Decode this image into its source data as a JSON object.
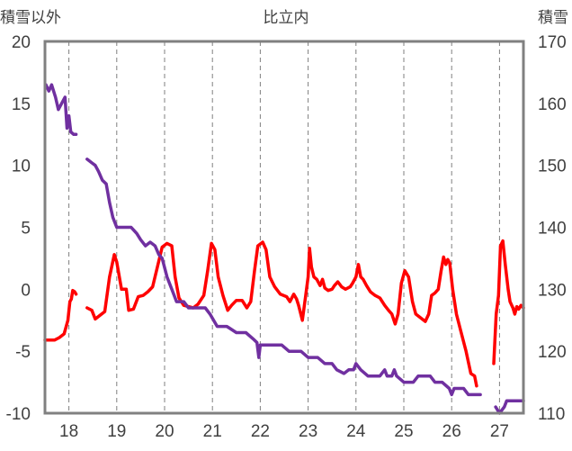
{
  "chart_data": {
    "type": "line",
    "title": "比立内",
    "left_axis_label": "積雪以外",
    "right_axis_label": "積雪",
    "x_ticks": [
      "18",
      "19",
      "20",
      "21",
      "22",
      "23",
      "24",
      "25",
      "26",
      "27"
    ],
    "xlim": [
      17.5,
      27.5
    ],
    "ylim_left": [
      -10,
      20
    ],
    "ylim_right": [
      110,
      170
    ],
    "y_ticks_left": [
      "20",
      "15",
      "10",
      "5",
      "0",
      "-5",
      "-10"
    ],
    "y_ticks_right": [
      "170",
      "160",
      "150",
      "140",
      "130",
      "120",
      "110"
    ],
    "grid": "vertical dashed at each day",
    "series": [
      {
        "color": "#ff0000",
        "axis": "left",
        "segments": [
          [
            [
              17.5,
              -4.1
            ],
            [
              17.7,
              -4.1
            ],
            [
              17.8,
              -3.9
            ],
            [
              17.9,
              -3.6
            ],
            [
              17.98,
              -2.5
            ],
            [
              18.02,
              -1.0
            ],
            [
              18.05,
              -0.8
            ],
            [
              18.08,
              -0.1
            ],
            [
              18.12,
              -0.2
            ],
            [
              18.15,
              -0.4
            ]
          ],
          [
            [
              18.38,
              -1.5
            ],
            [
              18.48,
              -1.7
            ],
            [
              18.55,
              -2.4
            ],
            [
              18.65,
              -2.1
            ],
            [
              18.75,
              -1.8
            ],
            [
              18.85,
              1.0
            ],
            [
              18.95,
              2.8
            ],
            [
              19.0,
              2.2
            ],
            [
              19.1,
              0.0
            ],
            [
              19.2,
              0.0
            ],
            [
              19.25,
              -1.7
            ],
            [
              19.35,
              -1.6
            ],
            [
              19.45,
              -0.6
            ],
            [
              19.55,
              -0.5
            ],
            [
              19.65,
              -0.2
            ],
            [
              19.75,
              0.2
            ],
            [
              19.85,
              1.8
            ],
            [
              19.95,
              3.4
            ],
            [
              20.05,
              3.7
            ],
            [
              20.15,
              3.5
            ],
            [
              20.22,
              1.0
            ],
            [
              20.3,
              -0.7
            ],
            [
              20.4,
              -1.3
            ],
            [
              20.5,
              -1.4
            ],
            [
              20.6,
              -1.5
            ],
            [
              20.7,
              -1.2
            ],
            [
              20.82,
              -0.5
            ],
            [
              20.9,
              1.5
            ],
            [
              20.98,
              3.7
            ],
            [
              21.05,
              3.2
            ],
            [
              21.12,
              1.0
            ],
            [
              21.22,
              -0.5
            ],
            [
              21.32,
              -1.7
            ],
            [
              21.4,
              -1.3
            ],
            [
              21.5,
              -0.9
            ],
            [
              21.62,
              -0.9
            ],
            [
              21.72,
              -1.5
            ],
            [
              21.8,
              -1.0
            ],
            [
              21.88,
              1.5
            ],
            [
              21.95,
              3.5
            ],
            [
              22.05,
              3.8
            ],
            [
              22.12,
              3.2
            ],
            [
              22.2,
              1.0
            ],
            [
              22.3,
              0.2
            ],
            [
              22.42,
              -0.4
            ],
            [
              22.55,
              -0.6
            ],
            [
              22.62,
              -1.0
            ],
            [
              22.7,
              -0.4
            ],
            [
              22.76,
              -0.8
            ],
            [
              22.8,
              -1.3
            ],
            [
              22.88,
              -2.5
            ],
            [
              22.95,
              -0.5
            ],
            [
              23.0,
              1.0
            ],
            [
              23.03,
              3.3
            ],
            [
              23.07,
              1.8
            ],
            [
              23.12,
              1.0
            ],
            [
              23.18,
              0.8
            ],
            [
              23.25,
              0.3
            ],
            [
              23.3,
              0.8
            ],
            [
              23.35,
              0.1
            ],
            [
              23.42,
              -0.1
            ],
            [
              23.5,
              0.0
            ],
            [
              23.55,
              0.3
            ],
            [
              23.62,
              0.6
            ],
            [
              23.7,
              0.2
            ],
            [
              23.78,
              0.0
            ],
            [
              23.88,
              0.2
            ],
            [
              23.93,
              0.5
            ],
            [
              24.0,
              1.0
            ],
            [
              24.05,
              2.0
            ],
            [
              24.1,
              1.0
            ],
            [
              24.15,
              0.8
            ],
            [
              24.22,
              0.3
            ],
            [
              24.3,
              -0.2
            ],
            [
              24.4,
              -0.5
            ],
            [
              24.5,
              -0.7
            ],
            [
              24.6,
              -1.3
            ],
            [
              24.68,
              -1.7
            ],
            [
              24.75,
              -2.0
            ],
            [
              24.82,
              -2.8
            ],
            [
              24.88,
              -2.0
            ],
            [
              24.95,
              0.5
            ],
            [
              25.02,
              1.5
            ],
            [
              25.1,
              1.0
            ],
            [
              25.18,
              -1.0
            ],
            [
              25.25,
              -2.0
            ],
            [
              25.35,
              -2.3
            ],
            [
              25.45,
              -2.6
            ],
            [
              25.52,
              -2.0
            ],
            [
              25.58,
              -0.5
            ],
            [
              25.65,
              -0.3
            ],
            [
              25.72,
              0.0
            ],
            [
              25.78,
              1.5
            ],
            [
              25.83,
              2.6
            ],
            [
              25.88,
              2.0
            ],
            [
              25.92,
              2.4
            ],
            [
              25.96,
              2.1
            ],
            [
              26.02,
              0.0
            ],
            [
              26.1,
              -2.0
            ],
            [
              26.2,
              -3.5
            ],
            [
              26.3,
              -5.0
            ],
            [
              26.4,
              -6.8
            ],
            [
              26.48,
              -7.0
            ],
            [
              26.52,
              -7.8
            ]
          ],
          [
            [
              26.88,
              -6.0
            ],
            [
              26.93,
              -2.0
            ],
            [
              26.98,
              -0.5
            ],
            [
              27.02,
              3.5
            ],
            [
              27.07,
              3.9
            ],
            [
              27.12,
              2.0
            ],
            [
              27.18,
              0.0
            ],
            [
              27.22,
              -1.0
            ],
            [
              27.28,
              -1.5
            ],
            [
              27.32,
              -2.0
            ],
            [
              27.36,
              -1.4
            ],
            [
              27.4,
              -1.6
            ],
            [
              27.45,
              -1.3
            ],
            [
              27.5,
              -1.5
            ]
          ]
        ]
      },
      {
        "color": "#7030a0",
        "axis": "left",
        "segments": [
          [
            [
              17.52,
              16.5
            ],
            [
              17.58,
              16.0
            ],
            [
              17.64,
              16.5
            ],
            [
              17.72,
              15.5
            ],
            [
              17.78,
              14.5
            ],
            [
              17.85,
              15.0
            ],
            [
              17.92,
              15.5
            ],
            [
              17.96,
              13.0
            ],
            [
              18.0,
              14.0
            ],
            [
              18.04,
              12.7
            ],
            [
              18.1,
              12.5
            ],
            [
              18.15,
              12.5
            ]
          ],
          [
            [
              18.38,
              10.5
            ],
            [
              18.48,
              10.2
            ],
            [
              18.55,
              10.0
            ],
            [
              18.62,
              9.5
            ],
            [
              18.7,
              8.8
            ],
            [
              18.78,
              8.5
            ],
            [
              18.85,
              7.0
            ],
            [
              18.92,
              5.8
            ],
            [
              19.0,
              5.0
            ],
            [
              19.15,
              5.0
            ],
            [
              19.3,
              5.0
            ],
            [
              19.42,
              4.5
            ],
            [
              19.5,
              4.0
            ],
            [
              19.6,
              3.5
            ],
            [
              19.7,
              3.8
            ],
            [
              19.8,
              3.5
            ],
            [
              19.88,
              2.8
            ],
            [
              19.95,
              2.5
            ],
            [
              20.05,
              1.0
            ],
            [
              20.15,
              0.0
            ],
            [
              20.25,
              -1.0
            ],
            [
              20.4,
              -1.0
            ],
            [
              20.5,
              -1.5
            ],
            [
              20.7,
              -1.5
            ],
            [
              20.85,
              -1.5
            ],
            [
              20.95,
              -2.0
            ],
            [
              21.1,
              -3.0
            ],
            [
              21.3,
              -3.0
            ],
            [
              21.5,
              -3.5
            ],
            [
              21.7,
              -3.5
            ],
            [
              21.85,
              -4.0
            ],
            [
              21.93,
              -4.3
            ],
            [
              21.97,
              -5.5
            ],
            [
              22.0,
              -4.5
            ],
            [
              22.2,
              -4.5
            ],
            [
              22.45,
              -4.5
            ],
            [
              22.6,
              -5.0
            ],
            [
              22.85,
              -5.0
            ],
            [
              23.0,
              -5.5
            ],
            [
              23.2,
              -5.5
            ],
            [
              23.35,
              -6.0
            ],
            [
              23.5,
              -6.0
            ],
            [
              23.6,
              -6.5
            ],
            [
              23.75,
              -6.8
            ],
            [
              23.85,
              -6.5
            ],
            [
              23.95,
              -6.5
            ],
            [
              24.0,
              -6.0
            ],
            [
              24.1,
              -6.5
            ],
            [
              24.25,
              -7.0
            ],
            [
              24.5,
              -7.0
            ],
            [
              24.6,
              -6.5
            ],
            [
              24.65,
              -7.0
            ],
            [
              24.75,
              -7.0
            ],
            [
              24.8,
              -6.5
            ],
            [
              24.85,
              -7.0
            ],
            [
              25.0,
              -7.5
            ],
            [
              25.2,
              -7.5
            ],
            [
              25.3,
              -7.0
            ],
            [
              25.55,
              -7.0
            ],
            [
              25.65,
              -7.5
            ],
            [
              25.8,
              -7.5
            ],
            [
              25.95,
              -8.0
            ],
            [
              26.0,
              -8.5
            ],
            [
              26.05,
              -8.0
            ],
            [
              26.25,
              -8.0
            ],
            [
              26.35,
              -8.5
            ],
            [
              26.55,
              -8.5
            ],
            [
              26.6,
              -8.5
            ]
          ],
          [
            [
              26.92,
              -9.5
            ],
            [
              27.0,
              -10.0
            ],
            [
              27.1,
              -9.5
            ],
            [
              27.15,
              -9.0
            ],
            [
              27.3,
              -9.0
            ],
            [
              27.5,
              -9.0
            ]
          ]
        ]
      }
    ]
  }
}
